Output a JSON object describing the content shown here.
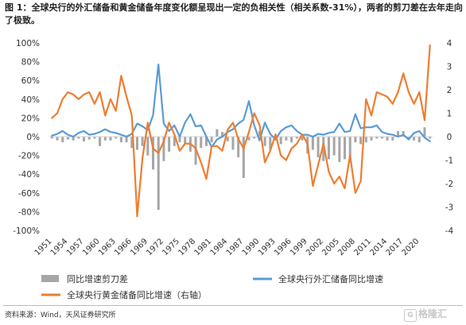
{
  "header": {
    "title": "图 1：全球央行的外汇储备和黄金储备年度变化额呈现出一定的负相关性（相关系数-31%），两者的剪刀差在去年走向了极致。"
  },
  "footer": {
    "source": "资料来源：Wind，天风证券研究所",
    "watermark": "格隆汇",
    "watermark_badge": "G"
  },
  "chart_data": {
    "type": "line",
    "title": "",
    "x": [
      1951,
      1952,
      1953,
      1954,
      1955,
      1956,
      1957,
      1958,
      1959,
      1960,
      1961,
      1962,
      1963,
      1964,
      1965,
      1966,
      1967,
      1968,
      1969,
      1970,
      1971,
      1972,
      1973,
      1974,
      1975,
      1976,
      1977,
      1978,
      1979,
      1980,
      1981,
      1982,
      1983,
      1984,
      1985,
      1986,
      1987,
      1988,
      1989,
      1990,
      1991,
      1992,
      1993,
      1994,
      1995,
      1996,
      1997,
      1998,
      1999,
      2000,
      2001,
      2002,
      2003,
      2004,
      2005,
      2006,
      2007,
      2008,
      2009,
      2010,
      2011,
      2012,
      2013,
      2014,
      2015,
      2016,
      2017,
      2018,
      2019,
      2020,
      2021,
      2022
    ],
    "x_tick_labels": [
      "1951",
      "1954",
      "1957",
      "1960",
      "1963",
      "1966",
      "1969",
      "1972",
      "1975",
      "1978",
      "1981",
      "1984",
      "1987",
      "1990",
      "1993",
      "1996",
      "1999",
      "2002",
      "2005",
      "2008",
      "2011",
      "2014",
      "2017",
      "2020"
    ],
    "left_axis": {
      "ylim": [
        -100,
        100
      ],
      "ticks": [
        "100%",
        "80%",
        "60%",
        "40%",
        "20%",
        "0%",
        "-20%",
        "-40%",
        "-60%",
        "-80%",
        "-100%"
      ],
      "unit": "%"
    },
    "right_axis": {
      "ylim": [
        -4,
        4
      ],
      "ticks": [
        "4",
        "3",
        "2",
        "1",
        "0",
        "-1",
        "-2",
        "-3",
        "-4"
      ]
    },
    "grid": false,
    "legend_position": "bottom",
    "series": [
      {
        "name": "同比增速剪刀差",
        "type": "bar",
        "axis": "left",
        "color": "#a6a6a6",
        "values": [
          -2,
          -4,
          -6,
          -3,
          -4,
          -2,
          -5,
          -3,
          -2,
          -10,
          -4,
          -4,
          -2,
          -6,
          -6,
          -12,
          -14,
          -10,
          -20,
          -35,
          -78,
          -26,
          -16,
          -10,
          -6,
          -8,
          -16,
          -30,
          -12,
          -10,
          -6,
          8,
          5,
          -5,
          -14,
          -22,
          -44,
          -4,
          -2,
          6,
          -10,
          -14,
          -4,
          -8,
          -4,
          -6,
          -2,
          -4,
          -18,
          -14,
          -22,
          -26,
          -24,
          -20,
          -27,
          -24,
          -28,
          -6,
          -8,
          -6,
          -4,
          -2,
          -2,
          -4,
          -4,
          6,
          6,
          -2,
          -4,
          -6,
          10,
          -2
        ]
      },
      {
        "name": "全球央行外汇储备同比增速",
        "type": "line",
        "axis": "left",
        "color": "#5b9bd5",
        "values": [
          1,
          3,
          6,
          2,
          0,
          4,
          6,
          2,
          3,
          5,
          8,
          5,
          4,
          2,
          0,
          3,
          14,
          11,
          7,
          23,
          77,
          14,
          6,
          12,
          0,
          15,
          24,
          11,
          12,
          0,
          -11,
          -3,
          0,
          5,
          8,
          14,
          18,
          38,
          12,
          -4,
          15,
          3,
          -3,
          6,
          10,
          12,
          6,
          2,
          2,
          0,
          3,
          2,
          4,
          5,
          14,
          5,
          6,
          24,
          9,
          10,
          10,
          12,
          5,
          3,
          2,
          0,
          2,
          -3,
          4,
          6,
          -1,
          -5
        ]
      },
      {
        "name": "全球央行黄金储备同比增速（右轴）",
        "type": "line",
        "axis": "right",
        "color": "#ed7d31",
        "values": [
          0.8,
          1.0,
          1.6,
          1.9,
          1.8,
          1.6,
          1.8,
          1.9,
          1.4,
          1.9,
          0.9,
          1.6,
          1.1,
          2.6,
          1.7,
          0.9,
          -3.4,
          -0.9,
          0.6,
          -0.5,
          -0.7,
          -0.2,
          0.6,
          0.1,
          -0.6,
          -0.3,
          -0.3,
          -0.5,
          -1.1,
          -1.8,
          -0.4,
          -0.4,
          -0.6,
          0.3,
          0.6,
          -0.1,
          -0.5,
          0.2,
          1.0,
          0.5,
          -1.1,
          -0.6,
          0.1,
          -0.8,
          -1.0,
          -0.5,
          -0.3,
          0.1,
          -0.3,
          -2.1,
          -1.2,
          -0.3,
          -1.5,
          -2.0,
          -1.7,
          -2.2,
          -0.8,
          -2.4,
          -1.9,
          1.6,
          0.9,
          1.9,
          1.8,
          1.7,
          1.4,
          1.9,
          2.7,
          1.9,
          1.4,
          1.9,
          0.7,
          3.9
        ]
      }
    ]
  }
}
